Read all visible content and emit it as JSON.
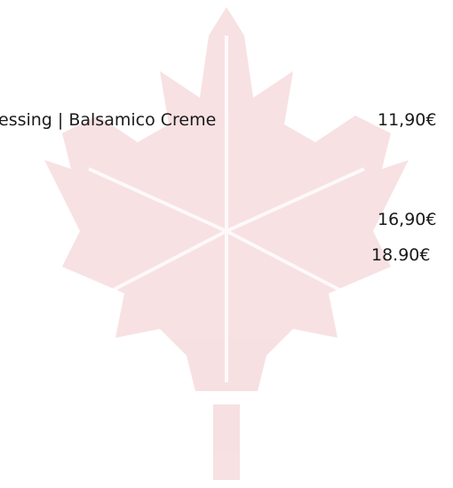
{
  "menu": {
    "items": [
      {
        "name": "essing | Balsamico Creme",
        "price": "11,90€"
      },
      {
        "price": "16,90€"
      },
      {
        "price": "18.90€"
      }
    ]
  }
}
